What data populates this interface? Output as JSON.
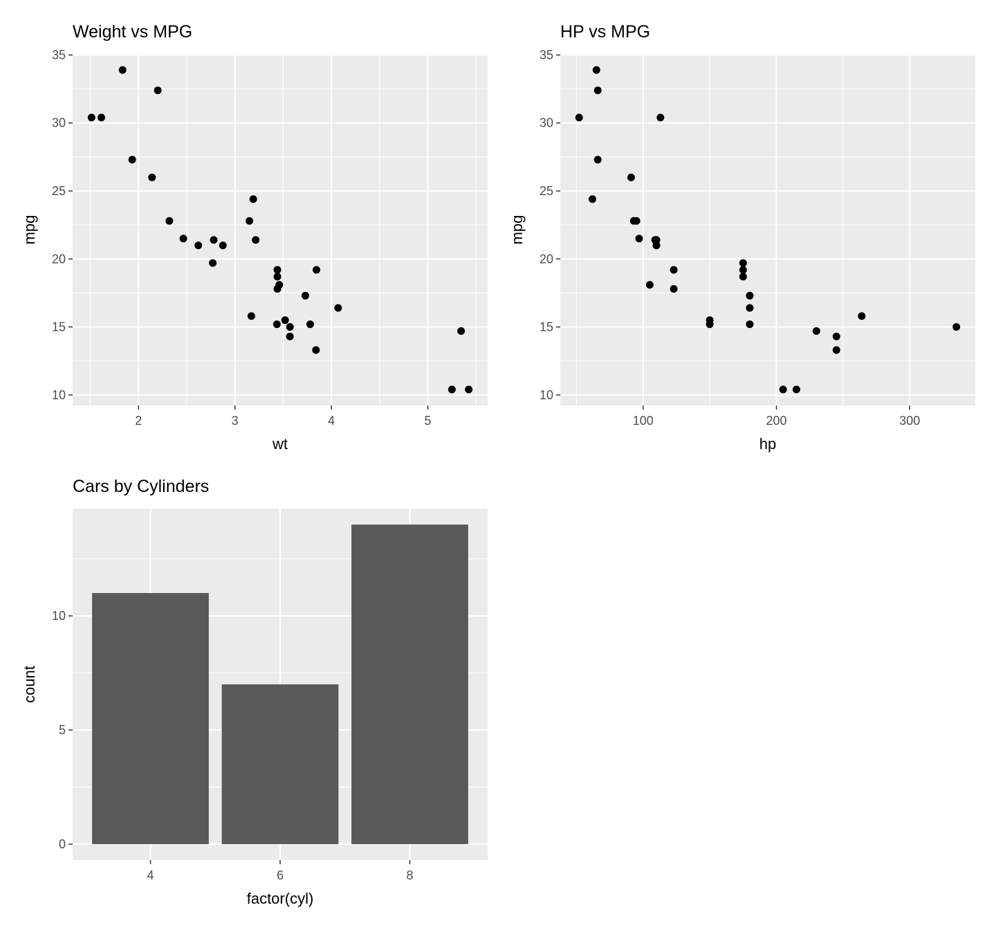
{
  "chart_data": [
    {
      "type": "scatter",
      "title": "Weight vs MPG",
      "xlabel": "wt",
      "ylabel": "mpg",
      "xlim": [
        1.317,
        5.62
      ],
      "ylim": [
        9.225,
        35.075
      ],
      "xticks": [
        2,
        3,
        4,
        5
      ],
      "xminor": [
        1.5,
        2.5,
        3.5,
        4.5,
        5.5
      ],
      "yticks": [
        10,
        15,
        20,
        25,
        30,
        35
      ],
      "yminor": [
        12.5,
        17.5,
        22.5,
        27.5,
        32.5
      ],
      "x": [
        2.62,
        2.875,
        2.32,
        3.215,
        3.44,
        3.46,
        3.57,
        3.19,
        3.15,
        3.44,
        3.44,
        4.07,
        3.73,
        3.78,
        5.25,
        5.424,
        5.345,
        2.2,
        1.615,
        1.835,
        2.465,
        3.52,
        3.435,
        3.84,
        3.845,
        1.935,
        2.14,
        1.513,
        3.17,
        2.77,
        3.57,
        2.78
      ],
      "y": [
        21.0,
        21.0,
        22.8,
        21.4,
        18.7,
        18.1,
        14.3,
        24.4,
        22.8,
        19.2,
        17.8,
        16.4,
        17.3,
        15.2,
        10.4,
        10.4,
        14.7,
        32.4,
        30.4,
        33.9,
        21.5,
        15.5,
        15.2,
        13.3,
        19.2,
        27.3,
        26.0,
        30.4,
        15.8,
        19.7,
        15.0,
        21.4
      ],
      "grid": true
    },
    {
      "type": "scatter",
      "title": "HP vs MPG",
      "xlabel": "hp",
      "ylabel": "mpg",
      "xlim": [
        37.85,
        349.15
      ],
      "ylim": [
        9.225,
        35.075
      ],
      "xticks": [
        100,
        200,
        300
      ],
      "xminor": [
        50,
        150,
        250
      ],
      "yticks": [
        10,
        15,
        20,
        25,
        30,
        35
      ],
      "yminor": [
        12.5,
        17.5,
        22.5,
        27.5,
        32.5
      ],
      "x": [
        110,
        110,
        93,
        110,
        175,
        105,
        245,
        62,
        95,
        123,
        123,
        180,
        180,
        180,
        205,
        215,
        230,
        66,
        52,
        65,
        97,
        150,
        150,
        245,
        175,
        66,
        91,
        113,
        264,
        175,
        335,
        109
      ],
      "y": [
        21.0,
        21.0,
        22.8,
        21.4,
        18.7,
        18.1,
        14.3,
        24.4,
        22.8,
        19.2,
        17.8,
        16.4,
        17.3,
        15.2,
        10.4,
        10.4,
        14.7,
        32.4,
        30.4,
        33.9,
        21.5,
        15.5,
        15.2,
        13.3,
        19.2,
        27.3,
        26.0,
        30.4,
        15.8,
        19.7,
        15.0,
        21.4
      ],
      "grid": true
    },
    {
      "type": "bar",
      "title": "Cars by Cylinders",
      "xlabel": "factor(cyl)",
      "ylabel": "count",
      "categories": [
        "4",
        "6",
        "8"
      ],
      "values": [
        11,
        7,
        14
      ],
      "ylim": [
        -0.7,
        14.7
      ],
      "yticks": [
        0,
        5,
        10
      ],
      "yminor": [
        2.5,
        7.5,
        12.5
      ],
      "grid": true
    }
  ],
  "colors": {
    "panel": "#EBEBEB",
    "grid": "#FFFFFF",
    "point": "#000000",
    "bar": "#595959",
    "tick_text": "#4D4D4D"
  }
}
